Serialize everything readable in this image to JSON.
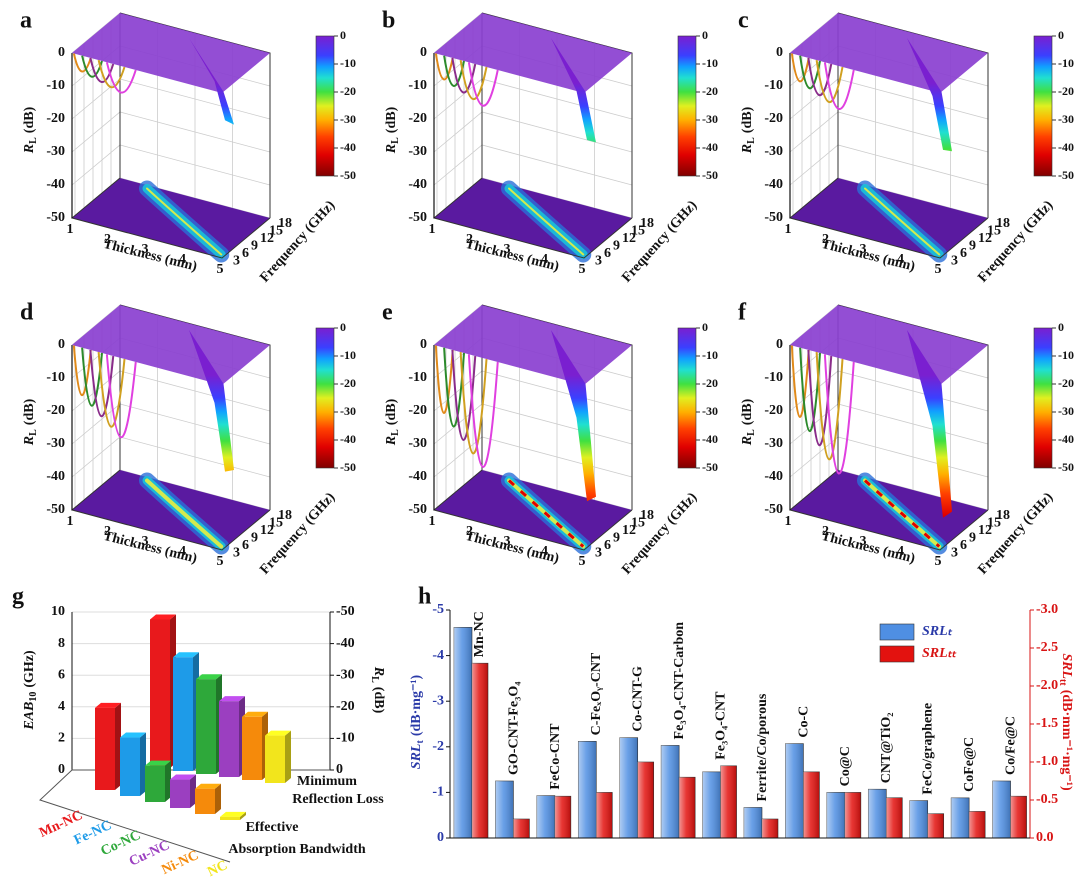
{
  "surface_panels": {
    "panels": [
      "a",
      "b",
      "c",
      "d",
      "e",
      "f"
    ],
    "z_label": {
      "symbol": "R",
      "subscript": "L",
      "unit": "(dB)"
    },
    "zlim": [
      -50,
      0
    ],
    "zticks": [
      0,
      -10,
      -20,
      -30,
      -40,
      -50
    ],
    "x_label": "Thickness (mm)",
    "xlim": [
      1,
      5
    ],
    "xticks": [
      1,
      2,
      3,
      4,
      5
    ],
    "y_label": "Frequency (GHz)",
    "ylim": [
      2,
      18
    ],
    "yticks": [
      3,
      6,
      9,
      12,
      15,
      18
    ],
    "colorbar_lim": [
      -50,
      0
    ],
    "colorbar_ticks": [
      0,
      -10,
      -20,
      -30,
      -40,
      -50
    ]
  },
  "chart_data": [
    {
      "type": "bar3d",
      "label": "g",
      "categories": [
        "Mn-NC",
        "Fe-NC",
        "Co-NC",
        "Cu-NC",
        "Ni-NC",
        "NC"
      ],
      "colors": [
        "#e8191c",
        "#1e9be8",
        "#2ea83a",
        "#9b3fc0",
        "#f58a0b",
        "#f2e51c"
      ],
      "y_label": {
        "symbol": "EAB",
        "subscript": "10",
        "unit": "(GHz)"
      },
      "ylim": [
        0,
        10
      ],
      "yticks": [
        0,
        2,
        4,
        6,
        8,
        10
      ],
      "y2_label": {
        "symbol": "R",
        "subscript": "L",
        "unit": "(dB)"
      },
      "y2lim": [
        0,
        -50
      ],
      "y2ticks": [
        0,
        -10,
        -20,
        -30,
        -40,
        -50
      ],
      "series": [
        {
          "name_lines": [
            "Effective",
            "Absorption Bandwidth"
          ],
          "values": [
            5.2,
            3.7,
            2.3,
            1.8,
            1.6,
            0.2
          ]
        },
        {
          "name_lines": [
            "Minimum",
            "Reflection Loss"
          ],
          "axis": "y2",
          "values": [
            -47,
            -36,
            -30,
            -24,
            -20,
            -15
          ]
        }
      ]
    },
    {
      "type": "bar",
      "label": "h",
      "categories": [
        "Mn-NC",
        "GO-CNT-Fe₃O₄",
        "FeCo-CNT",
        "C-FeₓOᵧ-CNT",
        "Co-CNT-G",
        "Fe₃O₄-CNT-Carbon",
        "Fe₃O₄-CNT",
        "Ferrite/Co/porous",
        "Co-C",
        "Co@C",
        "CNT@TiO₂",
        "FeCo/graphene",
        "CoFe@C",
        "Co/Fe@C"
      ],
      "y_label": {
        "symbol": "SRL",
        "subscript": "t",
        "unit": "(dB·mg⁻¹)"
      },
      "ylim": [
        0,
        -5
      ],
      "yticks": [
        0,
        -1,
        -2,
        -3,
        -4,
        -5
      ],
      "y2_label": {
        "symbol": "SRL",
        "subscript": "tt",
        "unit": "(dB·mm⁻¹·mg⁻¹)"
      },
      "y2lim": [
        0,
        -3
      ],
      "y2ticks": [
        {
          "value": 0,
          "label": "0.0"
        },
        {
          "value": -0.5,
          "label": "-0.5"
        },
        {
          "value": -1,
          "label": "-1.0"
        },
        {
          "value": -1.5,
          "label": "-1.5"
        },
        {
          "value": -2,
          "label": "-2.0"
        },
        {
          "value": -2.5,
          "label": "-2.5"
        },
        {
          "value": -3,
          "label": "-3.0"
        }
      ],
      "legend": "upper right",
      "series": [
        {
          "name": "SRLₜ",
          "color": "#4f8fe3",
          "values": [
            -4.62,
            -1.25,
            -0.93,
            -2.12,
            -2.2,
            -2.03,
            -1.45,
            -0.67,
            -2.07,
            -1.0,
            -1.07,
            -0.82,
            -0.88,
            -1.25
          ]
        },
        {
          "name": "SRLₜₜ",
          "color": "#e3120f",
          "axis": "y2",
          "values": [
            -2.3,
            -0.25,
            -0.55,
            -0.6,
            -1.0,
            -0.8,
            -0.95,
            -0.25,
            -0.87,
            -0.6,
            -0.53,
            -0.32,
            -0.35,
            -0.55
          ]
        }
      ]
    }
  ]
}
